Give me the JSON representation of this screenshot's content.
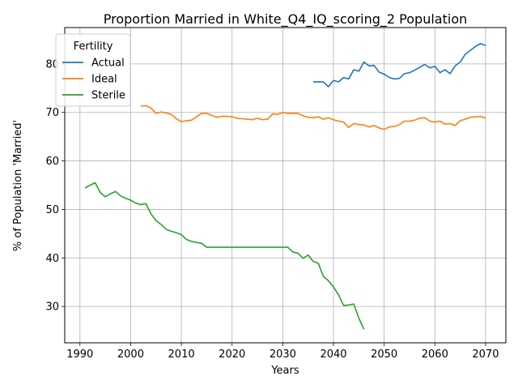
{
  "chart_data": {
    "type": "line",
    "title": "Proportion Married in White_Q4_IQ_scoring_2 Population",
    "xlabel": "Years",
    "ylabel": "% of Population 'Married'",
    "xlim": [
      1987,
      2074
    ],
    "ylim": [
      22.5,
      87.5
    ],
    "xticks": [
      1990,
      2000,
      2010,
      2020,
      2030,
      2040,
      2050,
      2060,
      2070
    ],
    "yticks": [
      30,
      40,
      50,
      60,
      70,
      80
    ],
    "grid": true,
    "legend": {
      "title": "Fertility",
      "placement": "top-left"
    },
    "series": [
      {
        "name": "Actual",
        "color": "#1f77b4",
        "x": [
          2036,
          2037,
          2038,
          2039,
          2040,
          2041,
          2042,
          2043,
          2044,
          2045,
          2046,
          2047,
          2048,
          2049,
          2050,
          2051,
          2052,
          2053,
          2054,
          2055,
          2056,
          2057,
          2058,
          2059,
          2060,
          2061,
          2062,
          2063,
          2064,
          2065,
          2066,
          2067,
          2068,
          2069,
          2070
        ],
        "y": [
          76.3,
          76.3,
          76.3,
          75.3,
          76.6,
          76.3,
          77.2,
          76.9,
          78.8,
          78.5,
          80.4,
          79.6,
          79.7,
          78.3,
          77.9,
          77.2,
          76.9,
          77.0,
          78.0,
          78.2,
          78.7,
          79.3,
          79.9,
          79.2,
          79.5,
          78.2,
          78.8,
          78.0,
          79.6,
          80.4,
          82.0,
          82.8,
          83.6,
          84.2,
          83.8
        ]
      },
      {
        "name": "Ideal",
        "color": "#ff7f0e",
        "x": [
          2002,
          2003,
          2004,
          2005,
          2006,
          2007,
          2008,
          2009,
          2010,
          2011,
          2012,
          2013,
          2014,
          2015,
          2016,
          2017,
          2018,
          2019,
          2020,
          2021,
          2022,
          2023,
          2024,
          2025,
          2026,
          2027,
          2028,
          2029,
          2030,
          2031,
          2032,
          2033,
          2034,
          2035,
          2036,
          2037,
          2038,
          2039,
          2040,
          2041,
          2042,
          2043,
          2044,
          2045,
          2046,
          2047,
          2048,
          2049,
          2050,
          2051,
          2052,
          2053,
          2054,
          2055,
          2056,
          2057,
          2058,
          2059,
          2060,
          2061,
          2062,
          2063,
          2064,
          2065,
          2066,
          2067,
          2068,
          2069,
          2070
        ],
        "y": [
          71.3,
          71.4,
          70.9,
          69.8,
          70.1,
          69.9,
          69.6,
          68.7,
          68.1,
          68.3,
          68.4,
          69.1,
          69.8,
          69.8,
          69.4,
          69.0,
          69.2,
          69.2,
          69.1,
          68.8,
          68.7,
          68.6,
          68.5,
          68.8,
          68.5,
          68.6,
          69.7,
          69.6,
          70.0,
          69.8,
          69.8,
          69.8,
          69.3,
          69.0,
          68.9,
          69.1,
          68.6,
          68.9,
          68.5,
          68.2,
          68.0,
          66.9,
          67.7,
          67.5,
          67.4,
          67.0,
          67.3,
          66.8,
          66.5,
          67.0,
          67.1,
          67.5,
          68.2,
          68.2,
          68.4,
          68.8,
          68.9,
          68.2,
          68.0,
          68.2,
          67.6,
          67.7,
          67.3,
          68.3,
          68.6,
          69.0,
          69.1,
          69.2,
          68.8
        ]
      },
      {
        "name": "Sterile",
        "color": "#2ca02c",
        "x": [
          1991,
          1992,
          1993,
          1994,
          1995,
          1996,
          1997,
          1998,
          1999,
          2000,
          2001,
          2002,
          2003,
          2004,
          2005,
          2006,
          2007,
          2008,
          2009,
          2010,
          2011,
          2012,
          2013,
          2014,
          2015,
          2016,
          2017,
          2018,
          2019,
          2020,
          2021,
          2022,
          2023,
          2024,
          2025,
          2026,
          2027,
          2028,
          2029,
          2030,
          2031,
          2032,
          2033,
          2034,
          2035,
          2036,
          2037,
          2038,
          2039,
          2040,
          2041,
          2042,
          2043,
          2044,
          2045,
          2046
        ],
        "y": [
          54.4,
          55.0,
          55.5,
          53.5,
          52.6,
          53.2,
          53.7,
          52.8,
          52.3,
          51.9,
          51.3,
          51.0,
          51.2,
          49.1,
          47.7,
          46.9,
          45.9,
          45.5,
          45.2,
          44.8,
          43.8,
          43.4,
          43.2,
          43.0,
          42.2,
          42.2,
          42.2,
          42.2,
          42.2,
          42.2,
          42.2,
          42.2,
          42.2,
          42.2,
          42.2,
          42.2,
          42.2,
          42.2,
          42.2,
          42.2,
          42.2,
          41.2,
          41.0,
          39.9,
          40.6,
          39.3,
          38.9,
          36.2,
          35.3,
          34.0,
          32.4,
          30.2,
          30.3,
          30.5,
          27.6,
          25.3
        ]
      }
    ]
  }
}
